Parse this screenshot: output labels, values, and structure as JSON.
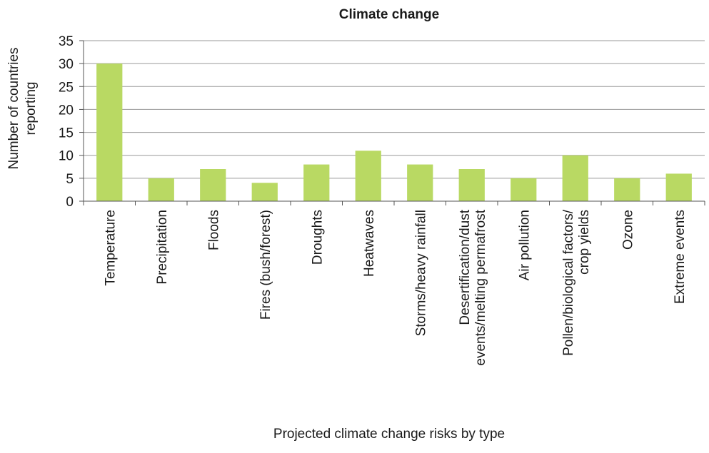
{
  "chart_data": {
    "type": "bar",
    "title": "Climate change",
    "ylabel": [
      "Number of countries",
      "reporting"
    ],
    "xlabel": "Projected climate change risks by type",
    "ylim": [
      0,
      35
    ],
    "yticks": [
      0,
      5,
      10,
      15,
      20,
      25,
      30,
      35
    ],
    "grid": true,
    "legend": "none",
    "bar_color": "#b9d963",
    "gridline_color": "#9a9a9a",
    "categories": [
      [
        "Temperature"
      ],
      [
        "Precipitation"
      ],
      [
        "Floods"
      ],
      [
        "Fires (bush/forest)"
      ],
      [
        "Droughts"
      ],
      [
        "Heatwaves"
      ],
      [
        "Storms/heavy rainfall"
      ],
      [
        "Desertification/dust",
        "events/melting permafrost"
      ],
      [
        "Air pollution"
      ],
      [
        "Pollen/biological factors/",
        "crop yields"
      ],
      [
        "Ozone"
      ],
      [
        "Extreme events"
      ]
    ],
    "values": [
      30,
      5,
      7,
      4,
      8,
      11,
      8,
      7,
      5,
      10,
      5,
      6
    ]
  }
}
